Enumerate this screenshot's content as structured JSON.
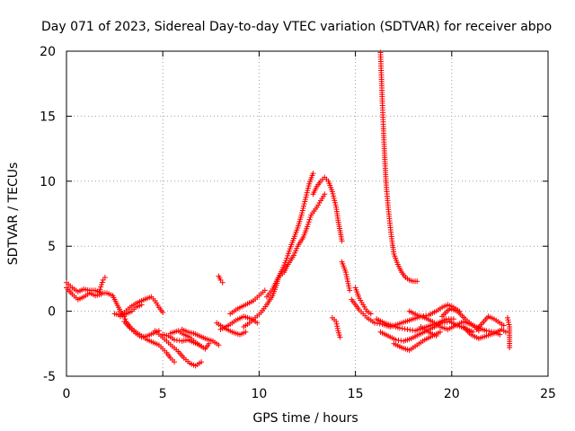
{
  "chart_data": {
    "type": "scatter",
    "title": "Day 071 of 2023, Sidereal Day-to-day VTEC variation (SDTVAR) for receiver abpo",
    "xlabel": "GPS time / hours",
    "ylabel": "SDTVAR / TECUs",
    "xlim": [
      0,
      25
    ],
    "ylim": [
      -5,
      20
    ],
    "xticks": [
      0,
      5,
      10,
      15,
      20,
      25
    ],
    "yticks": [
      -5,
      0,
      5,
      10,
      15,
      20
    ],
    "grid": true,
    "marker": "plus",
    "color": "#ff0000",
    "series": [
      {
        "name": "SDTVAR",
        "tracks": [
          [
            [
              0.0,
              2.2
            ],
            [
              0.3,
              1.8
            ],
            [
              0.6,
              1.5
            ],
            [
              0.9,
              1.7
            ],
            [
              1.2,
              1.6
            ],
            [
              1.5,
              1.6
            ],
            [
              1.8,
              1.4
            ],
            [
              2.1,
              1.4
            ],
            [
              2.4,
              1.2
            ],
            [
              2.6,
              0.6
            ],
            [
              2.8,
              0.0
            ],
            [
              3.0,
              -0.4
            ],
            [
              3.1,
              -0.8
            ],
            [
              3.3,
              -1.2
            ],
            [
              3.6,
              -1.6
            ],
            [
              3.9,
              -1.9
            ],
            [
              4.2,
              -2.2
            ],
            [
              4.5,
              -2.4
            ],
            [
              4.8,
              -2.6
            ],
            [
              5.0,
              -2.9
            ],
            [
              5.2,
              -3.2
            ],
            [
              5.4,
              -3.6
            ],
            [
              5.6,
              -3.9
            ]
          ],
          [
            [
              0.0,
              1.8
            ],
            [
              0.3,
              1.3
            ],
            [
              0.6,
              0.9
            ],
            [
              0.9,
              1.1
            ],
            [
              1.2,
              1.4
            ],
            [
              1.5,
              1.2
            ],
            [
              1.8,
              1.3
            ]
          ],
          [
            [
              1.7,
              1.5
            ],
            [
              1.9,
              2.4
            ],
            [
              2.0,
              2.6
            ]
          ],
          [
            [
              2.5,
              -0.2
            ],
            [
              2.8,
              -0.3
            ],
            [
              3.0,
              -0.1
            ],
            [
              3.3,
              0.3
            ],
            [
              3.6,
              0.6
            ],
            [
              3.9,
              0.8
            ],
            [
              4.2,
              1.0
            ],
            [
              4.4,
              1.1
            ],
            [
              4.6,
              0.8
            ],
            [
              4.8,
              0.3
            ],
            [
              5.0,
              -0.1
            ]
          ],
          [
            [
              2.8,
              -0.4
            ],
            [
              3.1,
              -0.2
            ],
            [
              3.4,
              0.0
            ],
            [
              3.6,
              0.3
            ],
            [
              3.9,
              0.5
            ]
          ],
          [
            [
              3.0,
              -0.8
            ],
            [
              3.3,
              -1.3
            ],
            [
              3.6,
              -1.7
            ],
            [
              3.9,
              -2.0
            ],
            [
              4.2,
              -1.9
            ],
            [
              4.5,
              -1.7
            ],
            [
              4.8,
              -1.5
            ]
          ],
          [
            [
              4.6,
              -1.5
            ],
            [
              4.9,
              -1.9
            ],
            [
              5.2,
              -2.3
            ],
            [
              5.5,
              -2.7
            ],
            [
              5.8,
              -3.1
            ],
            [
              6.1,
              -3.6
            ],
            [
              6.4,
              -4.0
            ],
            [
              6.7,
              -4.2
            ],
            [
              7.0,
              -3.9
            ]
          ],
          [
            [
              5.0,
              -1.8
            ],
            [
              5.3,
              -1.9
            ],
            [
              5.6,
              -2.2
            ],
            [
              6.0,
              -2.3
            ],
            [
              6.3,
              -2.2
            ],
            [
              6.6,
              -2.4
            ],
            [
              6.9,
              -2.6
            ],
            [
              7.2,
              -2.9
            ],
            [
              7.4,
              -2.5
            ]
          ],
          [
            [
              5.4,
              -1.7
            ],
            [
              5.8,
              -1.5
            ],
            [
              6.1,
              -1.8
            ],
            [
              6.4,
              -2.0
            ],
            [
              6.7,
              -2.4
            ],
            [
              7.0,
              -2.7
            ]
          ],
          [
            [
              6.0,
              -1.4
            ],
            [
              6.3,
              -1.6
            ],
            [
              6.6,
              -1.7
            ],
            [
              6.9,
              -1.9
            ],
            [
              7.2,
              -2.1
            ],
            [
              7.6,
              -2.3
            ],
            [
              7.9,
              -2.6
            ]
          ],
          [
            [
              7.9,
              2.7
            ],
            [
              8.0,
              2.4
            ],
            [
              8.1,
              2.2
            ]
          ],
          [
            [
              7.8,
              -0.9
            ],
            [
              8.2,
              -1.3
            ],
            [
              8.6,
              -1.6
            ],
            [
              9.0,
              -1.8
            ],
            [
              9.3,
              -1.6
            ]
          ],
          [
            [
              8.0,
              -1.4
            ],
            [
              8.4,
              -1.1
            ],
            [
              8.8,
              -0.7
            ],
            [
              9.2,
              -0.4
            ],
            [
              9.6,
              -0.6
            ],
            [
              9.9,
              -0.9
            ]
          ],
          [
            [
              8.5,
              -0.2
            ],
            [
              8.9,
              0.2
            ],
            [
              9.3,
              0.5
            ],
            [
              9.7,
              0.8
            ],
            [
              10.0,
              1.2
            ],
            [
              10.3,
              1.6
            ]
          ],
          [
            [
              9.2,
              -1.2
            ],
            [
              9.5,
              -0.9
            ],
            [
              9.8,
              -0.5
            ],
            [
              10.1,
              -0.1
            ],
            [
              10.4,
              0.5
            ],
            [
              10.7,
              1.2
            ],
            [
              10.9,
              2.0
            ],
            [
              11.0,
              2.6
            ],
            [
              11.3,
              3.0
            ],
            [
              11.5,
              3.6
            ],
            [
              11.8,
              4.3
            ],
            [
              12.0,
              5.0
            ],
            [
              12.3,
              5.7
            ],
            [
              12.5,
              6.5
            ],
            [
              12.7,
              7.4
            ],
            [
              13.0,
              8.0
            ],
            [
              13.2,
              8.5
            ],
            [
              13.4,
              9.0
            ]
          ],
          [
            [
              10.4,
              1.1
            ],
            [
              10.7,
              1.7
            ],
            [
              11.0,
              2.6
            ],
            [
              11.2,
              3.2
            ],
            [
              11.4,
              3.9
            ],
            [
              11.6,
              4.8
            ],
            [
              11.8,
              5.6
            ],
            [
              12.0,
              6.4
            ],
            [
              12.2,
              7.4
            ],
            [
              12.4,
              8.6
            ],
            [
              12.6,
              9.8
            ],
            [
              12.8,
              10.6
            ]
          ],
          [
            [
              12.8,
              9.0
            ],
            [
              13.0,
              9.6
            ],
            [
              13.2,
              10.0
            ],
            [
              13.4,
              10.3
            ],
            [
              13.6,
              10.0
            ],
            [
              13.8,
              9.2
            ],
            [
              14.0,
              8.0
            ],
            [
              14.1,
              7.0
            ],
            [
              14.2,
              6.2
            ],
            [
              14.3,
              5.4
            ]
          ],
          [
            [
              14.3,
              3.8
            ],
            [
              14.5,
              3.0
            ],
            [
              14.6,
              2.3
            ],
            [
              14.7,
              1.6
            ]
          ],
          [
            [
              13.8,
              -0.5
            ],
            [
              14.0,
              -0.8
            ],
            [
              14.1,
              -1.5
            ],
            [
              14.2,
              -2.0
            ]
          ],
          [
            [
              14.8,
              0.9
            ],
            [
              15.0,
              0.5
            ],
            [
              15.2,
              0.1
            ],
            [
              15.4,
              -0.2
            ],
            [
              15.6,
              -0.5
            ],
            [
              15.8,
              -0.7
            ],
            [
              16.0,
              -0.9
            ],
            [
              16.4,
              -1.0
            ],
            [
              16.8,
              -1.2
            ],
            [
              17.2,
              -1.0
            ],
            [
              17.6,
              -0.8
            ],
            [
              18.0,
              -0.6
            ],
            [
              18.4,
              -0.4
            ],
            [
              18.8,
              -0.3
            ],
            [
              19.2,
              0.0
            ],
            [
              19.5,
              0.3
            ],
            [
              19.8,
              0.5
            ],
            [
              20.1,
              0.3
            ],
            [
              20.4,
              0.0
            ]
          ],
          [
            [
              15.0,
              1.8
            ],
            [
              15.2,
              1.0
            ],
            [
              15.4,
              0.5
            ],
            [
              15.6,
              0.0
            ],
            [
              15.8,
              -0.2
            ]
          ],
          [
            [
              16.3,
              19.9
            ],
            [
              16.35,
              18.0
            ],
            [
              16.4,
              16.0
            ],
            [
              16.45,
              14.2
            ],
            [
              16.5,
              12.5
            ],
            [
              16.55,
              11.0
            ],
            [
              16.6,
              9.7
            ],
            [
              16.7,
              8.0
            ],
            [
              16.8,
              6.6
            ],
            [
              16.9,
              5.4
            ],
            [
              17.0,
              4.4
            ],
            [
              17.2,
              3.6
            ],
            [
              17.4,
              3.0
            ],
            [
              17.6,
              2.6
            ],
            [
              17.8,
              2.4
            ],
            [
              18.0,
              2.3
            ],
            [
              18.2,
              2.3
            ]
          ],
          [
            [
              16.1,
              -0.6
            ],
            [
              16.5,
              -0.9
            ],
            [
              16.9,
              -1.1
            ],
            [
              17.3,
              -1.3
            ],
            [
              17.7,
              -1.4
            ],
            [
              18.1,
              -1.5
            ],
            [
              18.5,
              -1.3
            ],
            [
              18.9,
              -1.1
            ],
            [
              19.3,
              -0.9
            ],
            [
              19.7,
              -0.6
            ],
            [
              20.1,
              -0.6
            ]
          ],
          [
            [
              16.3,
              -1.6
            ],
            [
              16.7,
              -1.9
            ],
            [
              17.1,
              -2.2
            ],
            [
              17.5,
              -2.3
            ],
            [
              17.9,
              -2.1
            ],
            [
              18.3,
              -1.8
            ],
            [
              18.7,
              -1.5
            ],
            [
              19.1,
              -1.2
            ],
            [
              19.5,
              -0.9
            ],
            [
              19.9,
              -0.8
            ],
            [
              20.3,
              -1.1
            ],
            [
              20.7,
              -1.3
            ],
            [
              21.1,
              -1.6
            ]
          ],
          [
            [
              17.0,
              -2.5
            ],
            [
              17.4,
              -2.8
            ],
            [
              17.8,
              -3.0
            ],
            [
              18.2,
              -2.6
            ],
            [
              18.6,
              -2.2
            ],
            [
              19.0,
              -1.9
            ],
            [
              19.4,
              -1.6
            ]
          ],
          [
            [
              17.8,
              0.0
            ],
            [
              18.2,
              -0.3
            ],
            [
              18.6,
              -0.5
            ],
            [
              19.0,
              -0.8
            ],
            [
              19.4,
              -1.2
            ],
            [
              19.8,
              -1.4
            ],
            [
              20.2,
              -1.1
            ],
            [
              20.6,
              -0.8
            ],
            [
              21.0,
              -1.0
            ],
            [
              21.4,
              -1.3
            ],
            [
              21.8,
              -1.5
            ],
            [
              22.2,
              -1.6
            ],
            [
              22.5,
              -1.8
            ]
          ],
          [
            [
              18.4,
              -1.2
            ],
            [
              18.8,
              -1.6
            ],
            [
              19.2,
              -1.9
            ]
          ],
          [
            [
              19.5,
              -0.4
            ],
            [
              19.9,
              0.2
            ],
            [
              20.3,
              0.0
            ],
            [
              20.7,
              -0.6
            ],
            [
              21.1,
              -1.1
            ],
            [
              21.4,
              -1.5
            ]
          ],
          [
            [
              20.6,
              -1.2
            ],
            [
              21.0,
              -1.8
            ],
            [
              21.4,
              -2.1
            ],
            [
              21.8,
              -1.9
            ],
            [
              22.2,
              -1.7
            ],
            [
              22.6,
              -1.4
            ],
            [
              22.8,
              -1.6
            ]
          ],
          [
            [
              21.3,
              -1.4
            ],
            [
              21.6,
              -0.9
            ],
            [
              21.9,
              -0.4
            ],
            [
              22.2,
              -0.6
            ],
            [
              22.5,
              -0.9
            ],
            [
              22.7,
              -1.1
            ]
          ],
          [
            [
              22.9,
              -0.5
            ],
            [
              23.0,
              -1.2
            ],
            [
              23.0,
              -2.0
            ],
            [
              23.0,
              -2.8
            ]
          ]
        ]
      }
    ]
  }
}
